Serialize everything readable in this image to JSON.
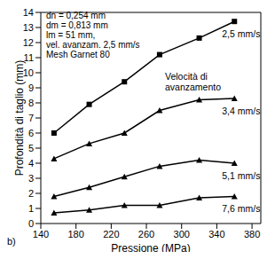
{
  "chart_data": {
    "type": "line",
    "panel_label": "b)",
    "x_label": "Pressione (MPa)",
    "y_label": "Profondità di taglio (mm)",
    "annotations": [
      "dn = 0,254 mm",
      "dm = 0,813 mm",
      "lm = 51 mm,",
      "vel. avanzam. 2,5 mm/s",
      "Mesh Garnet 80"
    ],
    "legend_title": [
      "Velocità di",
      "avanzamento"
    ],
    "x": [
      155,
      195,
      235,
      275,
      320,
      360
    ],
    "series": [
      {
        "name": "2,5 mm/s",
        "color": "#000000",
        "marker": "square",
        "values": [
          6.0,
          7.9,
          9.4,
          11.2,
          12.3,
          13.4
        ]
      },
      {
        "name": "3,4 mm/s",
        "color": "#000000",
        "marker": "triangle",
        "values": [
          4.3,
          5.3,
          6.0,
          7.5,
          8.2,
          8.3
        ]
      },
      {
        "name": "5,1 mm/s",
        "color": "#000000",
        "marker": "triangle",
        "values": [
          1.8,
          2.4,
          3.1,
          3.8,
          4.2,
          4.0
        ]
      },
      {
        "name": "7,6 mm/s",
        "color": "#000000",
        "marker": "triangle",
        "values": [
          0.7,
          0.9,
          1.2,
          1.2,
          1.7,
          1.8
        ]
      }
    ],
    "xlim": [
      140,
      390
    ],
    "xticks": [
      140,
      180,
      220,
      260,
      300,
      340,
      380
    ],
    "ylim": [
      0,
      14
    ],
    "yticks": [
      0,
      1,
      2,
      3,
      4,
      5,
      6,
      7,
      8,
      9,
      10,
      11,
      12,
      13,
      14
    ],
    "grid": false,
    "legend": false
  }
}
